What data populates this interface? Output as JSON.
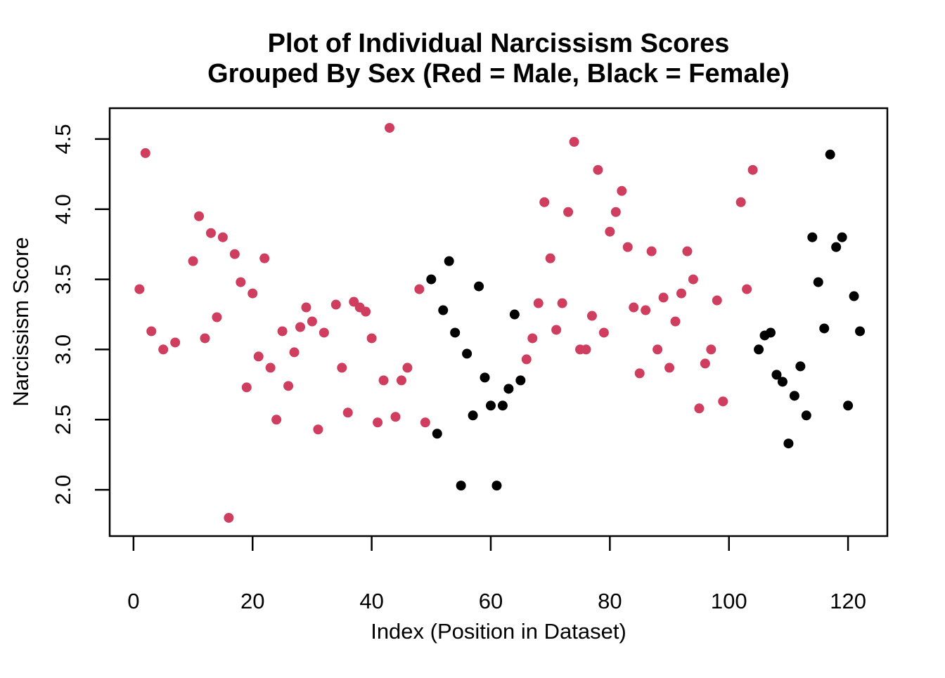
{
  "chart_data": {
    "type": "scatter",
    "title": "Plot of Individual Narcissism Scores",
    "subtitle": "Grouped By Sex (Red = Male, Black = Female)",
    "xlabel": "Index (Position in Dataset)",
    "ylabel": "Narcissism Score",
    "xlim": [
      -4,
      126.6
    ],
    "ylim": [
      1.67,
      4.72
    ],
    "x_ticks": [
      "0",
      "20",
      "40",
      "60",
      "80",
      "100",
      "120"
    ],
    "y_ticks": [
      "2.0",
      "2.5",
      "3.0",
      "3.5",
      "4.0",
      "4.5"
    ],
    "grid": false,
    "legend_position": "none",
    "point_radius": 7,
    "series": [
      {
        "name": "Male",
        "color": "#CF3D5F",
        "points": [
          [
            1,
            3.43
          ],
          [
            2,
            4.4
          ],
          [
            3,
            3.13
          ],
          [
            5,
            3.0
          ],
          [
            7,
            3.05
          ],
          [
            10,
            3.63
          ],
          [
            11,
            3.95
          ],
          [
            12,
            3.08
          ],
          [
            13,
            3.83
          ],
          [
            14,
            3.23
          ],
          [
            15,
            3.8
          ],
          [
            16,
            1.8
          ],
          [
            17,
            3.68
          ],
          [
            18,
            3.48
          ],
          [
            19,
            2.73
          ],
          [
            20,
            3.4
          ],
          [
            21,
            2.95
          ],
          [
            22,
            3.65
          ],
          [
            23,
            2.87
          ],
          [
            24,
            2.5
          ],
          [
            25,
            3.13
          ],
          [
            26,
            2.74
          ],
          [
            27,
            2.98
          ],
          [
            28,
            3.16
          ],
          [
            29,
            3.3
          ],
          [
            30,
            3.2
          ],
          [
            31,
            2.43
          ],
          [
            32,
            3.12
          ],
          [
            34,
            3.32
          ],
          [
            35,
            2.87
          ],
          [
            36,
            2.55
          ],
          [
            37,
            3.34
          ],
          [
            38,
            3.3
          ],
          [
            39,
            3.27
          ],
          [
            40,
            3.08
          ],
          [
            41,
            2.48
          ],
          [
            42,
            2.78
          ],
          [
            43,
            4.58
          ],
          [
            44,
            2.52
          ],
          [
            45,
            2.78
          ],
          [
            46,
            2.87
          ],
          [
            48,
            3.43
          ],
          [
            49,
            2.48
          ],
          [
            66,
            2.93
          ],
          [
            67,
            3.08
          ],
          [
            68,
            3.33
          ],
          [
            69,
            4.05
          ],
          [
            70,
            3.65
          ],
          [
            71,
            3.14
          ],
          [
            72,
            3.33
          ],
          [
            73,
            3.98
          ],
          [
            74,
            4.48
          ],
          [
            75,
            3.0
          ],
          [
            76,
            3.0
          ],
          [
            77,
            3.24
          ],
          [
            78,
            4.28
          ],
          [
            79,
            3.12
          ],
          [
            80,
            3.84
          ],
          [
            81,
            3.98
          ],
          [
            82,
            4.13
          ],
          [
            83,
            3.73
          ],
          [
            84,
            3.3
          ],
          [
            85,
            2.83
          ],
          [
            86,
            3.28
          ],
          [
            87,
            3.7
          ],
          [
            88,
            3.0
          ],
          [
            89,
            3.37
          ],
          [
            90,
            2.87
          ],
          [
            91,
            3.2
          ],
          [
            92,
            3.4
          ],
          [
            93,
            3.7
          ],
          [
            94,
            3.5
          ],
          [
            95,
            2.58
          ],
          [
            96,
            2.9
          ],
          [
            97,
            3.0
          ],
          [
            98,
            3.35
          ],
          [
            99,
            2.63
          ],
          [
            102,
            4.05
          ],
          [
            103,
            3.43
          ],
          [
            104,
            4.28
          ]
        ]
      },
      {
        "name": "Female",
        "color": "#000000",
        "points": [
          [
            50,
            3.5
          ],
          [
            51,
            2.4
          ],
          [
            52,
            3.28
          ],
          [
            53,
            3.63
          ],
          [
            54,
            3.12
          ],
          [
            55,
            2.03
          ],
          [
            56,
            2.97
          ],
          [
            57,
            2.53
          ],
          [
            58,
            3.45
          ],
          [
            59,
            2.8
          ],
          [
            60,
            2.6
          ],
          [
            61,
            2.03
          ],
          [
            62,
            2.6
          ],
          [
            63,
            2.72
          ],
          [
            64,
            3.25
          ],
          [
            65,
            2.78
          ],
          [
            105,
            3.0
          ],
          [
            106,
            3.1
          ],
          [
            107,
            3.12
          ],
          [
            108,
            2.82
          ],
          [
            109,
            2.77
          ],
          [
            110,
            2.33
          ],
          [
            111,
            2.67
          ],
          [
            112,
            2.88
          ],
          [
            113,
            2.53
          ],
          [
            114,
            3.8
          ],
          [
            115,
            3.48
          ],
          [
            116,
            3.15
          ],
          [
            117,
            4.39
          ],
          [
            118,
            3.73
          ],
          [
            119,
            3.8
          ],
          [
            120,
            2.6
          ],
          [
            121,
            3.38
          ],
          [
            122,
            3.13
          ]
        ]
      }
    ]
  }
}
